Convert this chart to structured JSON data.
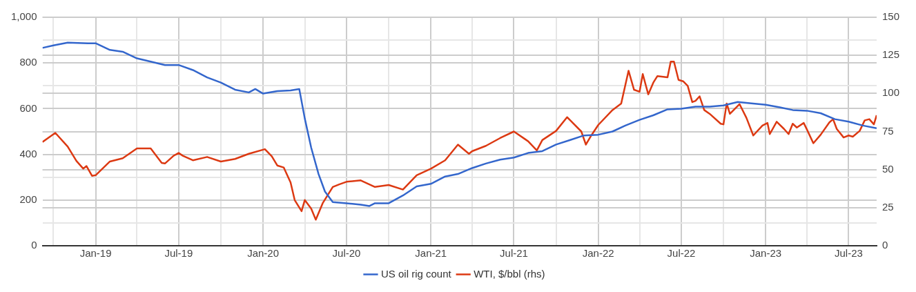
{
  "chart_data": {
    "type": "line",
    "xlim": [
      "2018-09-07",
      "2023-08-31"
    ],
    "xticks": [
      {
        "value": "2018-10-01",
        "label": null
      },
      {
        "value": "2019-01-01",
        "label": "Jan-19"
      },
      {
        "value": "2019-04-01",
        "label": null
      },
      {
        "value": "2019-07-01",
        "label": "Jul-19"
      },
      {
        "value": "2019-10-01",
        "label": null
      },
      {
        "value": "2020-01-01",
        "label": "Jan-20"
      },
      {
        "value": "2020-04-01",
        "label": null
      },
      {
        "value": "2020-07-01",
        "label": "Jul-20"
      },
      {
        "value": "2020-10-01",
        "label": null
      },
      {
        "value": "2021-01-01",
        "label": "Jan-21"
      },
      {
        "value": "2021-04-01",
        "label": null
      },
      {
        "value": "2021-07-01",
        "label": "Jul-21"
      },
      {
        "value": "2021-10-01",
        "label": null
      },
      {
        "value": "2022-01-01",
        "label": "Jan-22"
      },
      {
        "value": "2022-04-01",
        "label": null
      },
      {
        "value": "2022-07-01",
        "label": "Jul-22"
      },
      {
        "value": "2022-10-01",
        "label": null
      },
      {
        "value": "2023-01-01",
        "label": "Jan-23"
      },
      {
        "value": "2023-04-01",
        "label": null
      },
      {
        "value": "2023-07-01",
        "label": "Jul-23"
      }
    ],
    "ylim": [
      0,
      1000
    ],
    "yticks": [
      0,
      {
        "value": 100,
        "label": null
      },
      200,
      {
        "value": 300,
        "label": null
      },
      400,
      {
        "value": 500,
        "label": null
      },
      600,
      {
        "value": 700,
        "label": null
      },
      800,
      {
        "value": 900,
        "label": null
      },
      {
        "value": 1000,
        "label": "1,000"
      }
    ],
    "y2lim": [
      0,
      150
    ],
    "y2ticks": [
      0,
      25,
      50,
      75,
      100,
      125,
      150
    ],
    "grid": true,
    "legend": "bottom",
    "marker": "none",
    "line_style": "solid",
    "series": [
      {
        "name": "US oil rig count",
        "color": "#3366cc",
        "x": [
          "2018-09-07",
          "2018-10-01",
          "2018-11-01",
          "2018-12-15",
          "2019-01-01",
          "2019-02-01",
          "2019-03-01",
          "2019-04-01",
          "2019-05-01",
          "2019-06-01",
          "2019-07-01",
          "2019-08-01",
          "2019-09-01",
          "2019-10-01",
          "2019-11-01",
          "2019-12-01",
          "2019-12-15",
          "2020-01-01",
          "2020-02-01",
          "2020-03-01",
          "2020-03-20",
          "2020-04-01",
          "2020-04-15",
          "2020-05-01",
          "2020-05-15",
          "2020-06-01",
          "2020-07-01",
          "2020-08-01",
          "2020-08-20",
          "2020-09-01",
          "2020-10-01",
          "2020-11-01",
          "2020-12-01",
          "2021-01-01",
          "2021-02-01",
          "2021-03-01",
          "2021-04-01",
          "2021-05-01",
          "2021-06-01",
          "2021-07-01",
          "2021-08-01",
          "2021-09-01",
          "2021-10-01",
          "2021-11-01",
          "2021-12-01",
          "2022-01-01",
          "2022-02-01",
          "2022-03-01",
          "2022-04-01",
          "2022-05-01",
          "2022-06-01",
          "2022-07-01",
          "2022-08-01",
          "2022-09-01",
          "2022-10-01",
          "2022-11-01",
          "2022-12-01",
          "2023-01-01",
          "2023-02-01",
          "2023-03-01",
          "2023-04-01",
          "2023-05-01",
          "2023-06-01",
          "2023-07-01",
          "2023-08-01",
          "2023-08-31"
        ],
        "values": [
          866,
          877,
          889,
          886,
          886,
          857,
          849,
          820,
          806,
          791,
          791,
          769,
          737,
          714,
          683,
          671,
          686,
          666,
          677,
          680,
          686,
          557,
          429,
          314,
          237,
          191,
          186,
          180,
          174,
          186,
          186,
          220,
          260,
          271,
          303,
          314,
          340,
          360,
          377,
          386,
          406,
          414,
          443,
          463,
          483,
          486,
          500,
          526,
          551,
          571,
          597,
          600,
          609,
          609,
          614,
          629,
          623,
          617,
          606,
          594,
          591,
          580,
          554,
          543,
          526,
          514
        ]
      },
      {
        "name": "WTI, $/bbl (rhs)",
        "color": "#dc3912",
        "axis": "y2",
        "x": [
          "2018-09-07",
          "2018-10-05",
          "2018-11-01",
          "2018-11-20",
          "2018-12-05",
          "2018-12-12",
          "2018-12-24",
          "2019-01-01",
          "2019-02-01",
          "2019-03-01",
          "2019-04-01",
          "2019-05-01",
          "2019-05-25",
          "2019-06-01",
          "2019-06-20",
          "2019-07-01",
          "2019-07-10",
          "2019-08-01",
          "2019-09-01",
          "2019-10-01",
          "2019-11-01",
          "2019-12-01",
          "2020-01-05",
          "2020-01-20",
          "2020-02-01",
          "2020-02-15",
          "2020-03-01",
          "2020-03-10",
          "2020-03-25",
          "2020-04-01",
          "2020-04-15",
          "2020-04-25",
          "2020-05-10",
          "2020-06-01",
          "2020-06-15",
          "2020-07-01",
          "2020-08-01",
          "2020-09-01",
          "2020-10-01",
          "2020-11-01",
          "2020-12-01",
          "2021-01-01",
          "2021-02-01",
          "2021-03-01",
          "2021-03-25",
          "2021-04-01",
          "2021-05-01",
          "2021-06-01",
          "2021-07-01",
          "2021-08-01",
          "2021-08-20",
          "2021-09-01",
          "2021-10-01",
          "2021-10-25",
          "2021-11-01",
          "2021-11-25",
          "2021-12-05",
          "2021-12-15",
          "2022-01-01",
          "2022-02-01",
          "2022-02-20",
          "2022-03-08",
          "2022-03-20",
          "2022-04-01",
          "2022-04-08",
          "2022-04-20",
          "2022-05-01",
          "2022-05-10",
          "2022-06-01",
          "2022-06-08",
          "2022-06-15",
          "2022-06-25",
          "2022-07-05",
          "2022-07-15",
          "2022-07-25",
          "2022-08-01",
          "2022-08-10",
          "2022-08-20",
          "2022-09-01",
          "2022-09-25",
          "2022-10-01",
          "2022-10-08",
          "2022-10-15",
          "2022-11-05",
          "2022-11-20",
          "2022-12-05",
          "2022-12-25",
          "2023-01-05",
          "2023-01-10",
          "2023-01-25",
          "2023-02-10",
          "2023-02-20",
          "2023-03-01",
          "2023-03-10",
          "2023-03-25",
          "2023-04-01",
          "2023-04-15",
          "2023-05-01",
          "2023-05-20",
          "2023-05-28",
          "2023-06-05",
          "2023-06-20",
          "2023-07-01",
          "2023-07-10",
          "2023-07-25",
          "2023-08-05",
          "2023-08-15",
          "2023-08-25",
          "2023-08-31"
        ],
        "values": [
          68.1,
          74.1,
          65.1,
          55.7,
          50.6,
          52.3,
          45.9,
          46.3,
          55.3,
          57.4,
          63.9,
          63.9,
          54.4,
          54.0,
          59.1,
          60.9,
          59.1,
          56.1,
          58.3,
          55.3,
          57.0,
          60.4,
          63.4,
          58.7,
          52.7,
          51.4,
          41.6,
          30.0,
          22.7,
          30.0,
          24.4,
          17.1,
          27.9,
          38.6,
          40.3,
          42.0,
          42.9,
          38.6,
          39.9,
          36.9,
          46.3,
          50.6,
          56.1,
          66.4,
          60.4,
          62.1,
          65.6,
          70.7,
          75.0,
          68.6,
          62.6,
          69.4,
          75.4,
          84.4,
          82.3,
          75.0,
          66.4,
          71.6,
          79.3,
          89.1,
          93.4,
          114.9,
          102.4,
          101.1,
          112.7,
          99.4,
          107.1,
          111.4,
          110.6,
          120.9,
          120.9,
          108.9,
          108.0,
          105.0,
          94.3,
          95.1,
          98.1,
          89.1,
          86.6,
          80.1,
          79.7,
          93.4,
          86.6,
          93.0,
          84.0,
          72.4,
          78.9,
          80.6,
          73.3,
          81.4,
          76.7,
          73.3,
          80.1,
          77.6,
          80.6,
          76.3,
          67.3,
          72.9,
          81.0,
          83.1,
          76.7,
          71.1,
          72.4,
          71.6,
          75.4,
          82.3,
          83.1,
          79.7,
          85.7
        ]
      }
    ]
  }
}
